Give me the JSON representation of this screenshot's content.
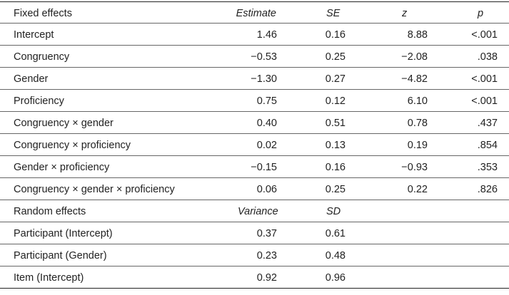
{
  "fixed_header": {
    "label": "Fixed effects",
    "estimate": "Estimate",
    "se": "SE",
    "z": "z",
    "p": "p"
  },
  "fixed_rows": [
    {
      "label": "Intercept",
      "estimate": "1.46",
      "se": "0.16",
      "z": "8.88",
      "p": "<.001"
    },
    {
      "label": "Congruency",
      "estimate": "−0.53",
      "se": "0.25",
      "z": "−2.08",
      "p": ".038"
    },
    {
      "label": "Gender",
      "estimate": "−1.30",
      "se": "0.27",
      "z": "−4.82",
      "p": "<.001"
    },
    {
      "label": "Proficiency",
      "estimate": "0.75",
      "se": "0.12",
      "z": "6.10",
      "p": "<.001"
    },
    {
      "label": "Congruency × gender",
      "estimate": "0.40",
      "se": "0.51",
      "z": "0.78",
      "p": ".437"
    },
    {
      "label": "Congruency × proficiency",
      "estimate": "0.02",
      "se": "0.13",
      "z": "0.19",
      "p": ".854"
    },
    {
      "label": "Gender × proficiency",
      "estimate": "−0.15",
      "se": "0.16",
      "z": "−0.93",
      "p": ".353"
    },
    {
      "label": "Congruency × gender × proficiency",
      "estimate": "0.06",
      "se": "0.25",
      "z": "0.22",
      "p": ".826"
    }
  ],
  "random_header": {
    "label": "Random effects",
    "variance": "Variance",
    "sd": "SD"
  },
  "random_rows": [
    {
      "label": "Participant (Intercept)",
      "variance": "0.37",
      "sd": "0.61"
    },
    {
      "label": "Participant (Gender)",
      "variance": "0.23",
      "sd": "0.48"
    },
    {
      "label": "Item (Intercept)",
      "variance": "0.92",
      "sd": "0.96"
    }
  ]
}
